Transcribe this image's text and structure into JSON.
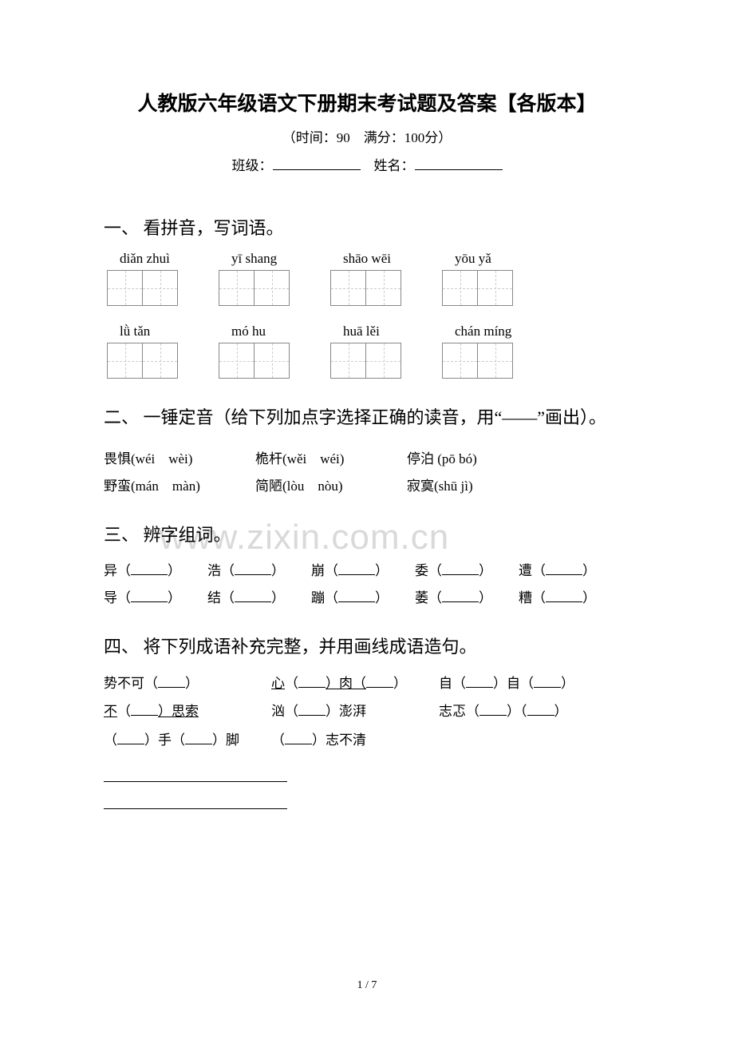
{
  "title": "人教版六年级语文下册期末考试题及答案【各版本】",
  "subtitle": "（时间：90　满分：100分）",
  "info": {
    "class_label": "班级：",
    "name_label": "姓名："
  },
  "watermark": "www.zixin.com.cn",
  "page_num": "1 / 7",
  "colors": {
    "text": "#000000",
    "bg": "#ffffff",
    "watermark": "#d9d9d9",
    "box_border": "#888888",
    "box_dash": "#cccccc"
  },
  "section1": {
    "heading": "一、 看拼音，写词语。",
    "row1_pinyin": [
      "diǎn zhuì",
      "yī shang",
      "shāo wēi",
      "yōu yǎ"
    ],
    "row2_pinyin": [
      "lǜ tǎn",
      "mó hu",
      "huā lěi",
      "chán míng"
    ]
  },
  "section2": {
    "heading": "二、 一锤定音（给下列加点字选择正确的读音，用“——”画出）。",
    "rows": [
      [
        "畏惧(wéi　wèi)",
        "桅杆(wěi　wéi)",
        "停泊 (pō  bó)"
      ],
      [
        "野蛮(mán　màn)",
        "简陋(lòu　nòu)",
        "寂寞(shū jì)"
      ]
    ]
  },
  "section3": {
    "heading": "三、 辨字组词。",
    "rows": [
      [
        "异（",
        "浩（",
        "崩（",
        "委（",
        "遭（",
        "）"
      ],
      [
        "导（",
        "结（",
        "蹦（",
        "萎（",
        "糟（",
        "）"
      ]
    ]
  },
  "section4": {
    "heading": "四、 将下列成语补充完整，并用画线成语造句。",
    "row1": {
      "a": "势不可（",
      "b_pre": "心",
      "b_mid": "（",
      "b_suf": "）肉（",
      "c": "自（",
      "c2": "）自（"
    },
    "row2": {
      "a_pre": "不",
      "a_suf": "（",
      "a_end": "）思索",
      "b": "汹（",
      "b_end": "）澎湃",
      "c": "志忑（",
      "c2": "）（"
    },
    "row3": {
      "a": "（",
      "a_mid": "）手（",
      "a_end": "）脚",
      "b": "（",
      "b_end": "）志不清"
    }
  }
}
